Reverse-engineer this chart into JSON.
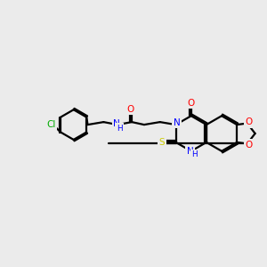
{
  "background_color": "#ebebeb",
  "bond_color": "#000000",
  "atom_colors": {
    "Cl": "#00aa00",
    "N": "#0000ff",
    "O": "#ff0000",
    "S": "#cccc00",
    "C": "#000000",
    "H": "#0000ff"
  },
  "figsize": [
    3.0,
    3.0
  ],
  "dpi": 100
}
